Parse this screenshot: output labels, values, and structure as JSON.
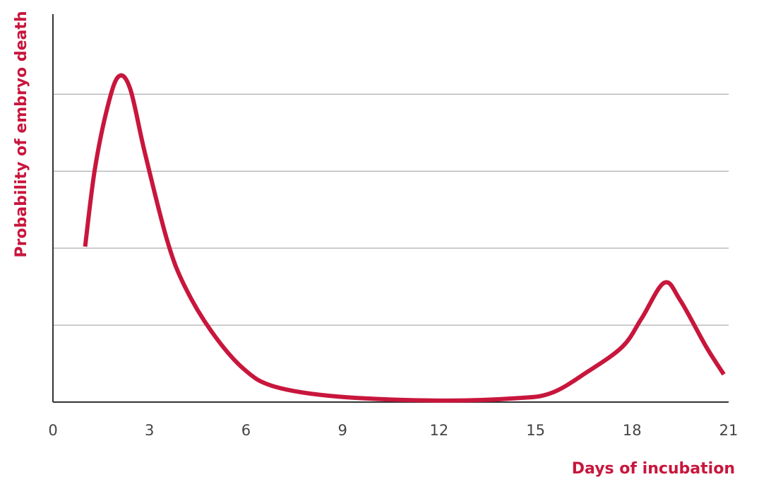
{
  "chart_data": {
    "type": "line",
    "x_label": "Days of incubation",
    "y_label": "Probability of embryo death",
    "x": [
      1.0,
      1.3,
      1.7,
      2.04,
      2.4,
      2.85,
      3.55,
      4.1,
      4.94,
      5.93,
      6.9,
      8.9,
      12,
      14.4,
      15.5,
      16.6,
      17.7,
      18.3,
      19.0,
      19.5,
      20.3,
      20.85
    ],
    "series": [
      {
        "color": "#c8163c",
        "values": [
          2.02,
          3.02,
          3.84,
          4.23,
          4.07,
          3.25,
          2.1,
          1.5,
          0.91,
          0.43,
          0.2,
          0.07,
          0.02,
          0.05,
          0.12,
          0.39,
          0.72,
          1.09,
          1.55,
          1.32,
          0.72,
          0.36
        ]
      }
    ],
    "xlim": [
      0,
      21
    ],
    "xticks": [
      0,
      3,
      6,
      9,
      12,
      15,
      18,
      21
    ],
    "ylim": [
      0,
      5.04
    ],
    "yticks": [
      1,
      2,
      3,
      4
    ],
    "grid": true
  }
}
